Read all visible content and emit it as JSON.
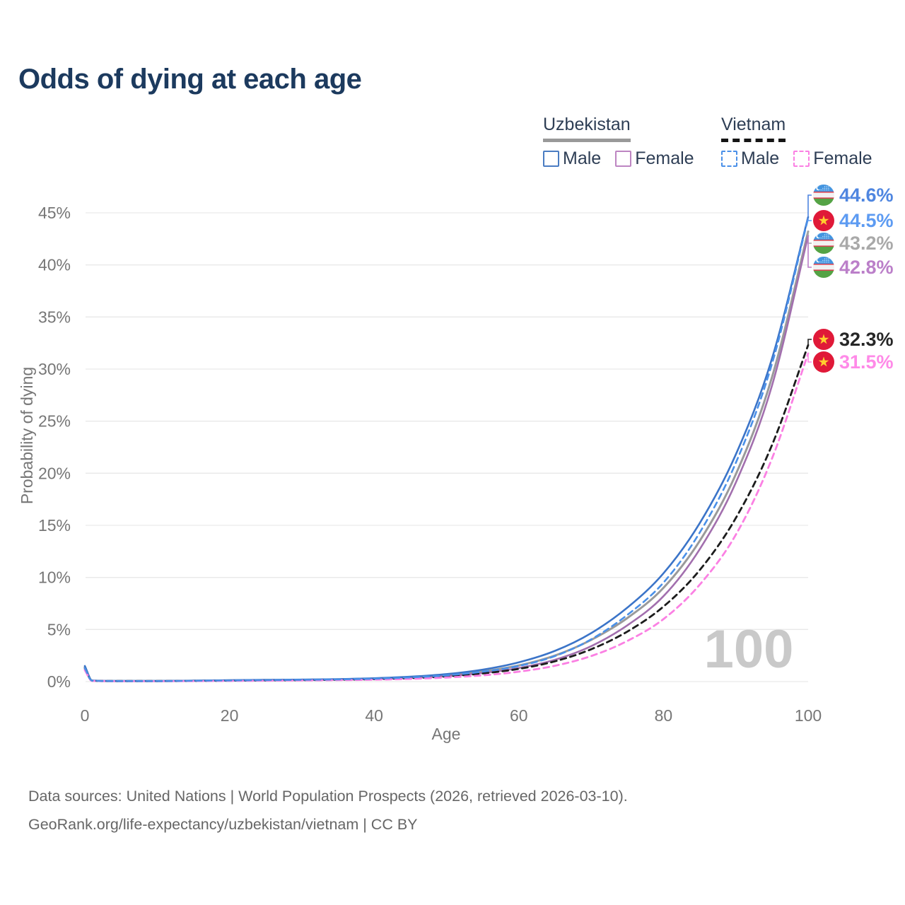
{
  "title": "Odds of dying at each age",
  "legend": {
    "groups": [
      {
        "country": "Uzbekistan",
        "line_style": "solid",
        "underline_color": "#999999",
        "items": [
          {
            "label": "Male",
            "color": "#4a7cc2",
            "dashed": false
          },
          {
            "label": "Female",
            "color": "#bd85c2",
            "dashed": false
          }
        ]
      },
      {
        "country": "Vietnam",
        "line_style": "dashed",
        "underline_color": "#151515",
        "items": [
          {
            "label": "Male",
            "color": "#4a90e8",
            "dashed": true
          },
          {
            "label": "Female",
            "color": "#fb80e3",
            "dashed": true
          }
        ]
      }
    ]
  },
  "chart_data": {
    "type": "line",
    "title": "Odds of dying at each age",
    "xlabel": "Age",
    "ylabel": "Probability of dying",
    "xlim": [
      0,
      100
    ],
    "ylim": [
      0,
      46.5
    ],
    "x_ticks": [
      0,
      20,
      40,
      60,
      80,
      100
    ],
    "y_tick_values": [
      0,
      5,
      10,
      15,
      20,
      25,
      30,
      35,
      40,
      45
    ],
    "y_tick_labels": [
      "0%",
      "5%",
      "10%",
      "15%",
      "20%",
      "25%",
      "30%",
      "35%",
      "40%",
      "45%"
    ],
    "grid": "horizontal",
    "legend_position": "top-right",
    "watermark": "100",
    "ages": [
      0,
      1,
      5,
      10,
      15,
      20,
      25,
      30,
      35,
      40,
      45,
      50,
      55,
      60,
      65,
      70,
      75,
      80,
      85,
      90,
      95,
      100
    ],
    "series": [
      {
        "name": "Uzbekistan (both sexes)",
        "country": "Uzbekistan",
        "style": "solid",
        "color": "#9a9a9a",
        "width": 3,
        "values": [
          1.4,
          0.09,
          0.05,
          0.05,
          0.08,
          0.11,
          0.14,
          0.17,
          0.21,
          0.28,
          0.41,
          0.62,
          0.98,
          1.55,
          2.5,
          4.0,
          6.1,
          9.0,
          13.5,
          19.9,
          29.2,
          43.2
        ]
      },
      {
        "name": "Uzbekistan Female",
        "country": "Uzbekistan",
        "style": "solid",
        "color": "#a26fae",
        "width": 2.6,
        "values": [
          1.2,
          0.08,
          0.05,
          0.05,
          0.07,
          0.09,
          0.11,
          0.14,
          0.18,
          0.24,
          0.35,
          0.53,
          0.83,
          1.3,
          2.1,
          3.4,
          5.4,
          8.2,
          12.7,
          19.1,
          28.4,
          42.8
        ]
      },
      {
        "name": "Uzbekistan Male",
        "country": "Uzbekistan",
        "style": "solid",
        "color": "#3b74c8",
        "width": 2.6,
        "values": [
          1.5,
          0.1,
          0.06,
          0.06,
          0.09,
          0.13,
          0.16,
          0.19,
          0.24,
          0.32,
          0.47,
          0.72,
          1.15,
          1.85,
          2.95,
          4.65,
          7.1,
          10.4,
          15.2,
          21.8,
          31.0,
          44.6
        ]
      },
      {
        "name": "Vietnam (both sexes)",
        "country": "Vietnam",
        "style": "dashed",
        "color": "#1c1c1c",
        "width": 2.8,
        "values": [
          1.3,
          0.08,
          0.05,
          0.05,
          0.07,
          0.09,
          0.12,
          0.14,
          0.18,
          0.23,
          0.33,
          0.5,
          0.78,
          1.22,
          1.95,
          3.1,
          4.8,
          7.2,
          10.7,
          15.7,
          22.7,
          32.3
        ]
      },
      {
        "name": "Vietnam Female",
        "country": "Vietnam",
        "style": "dashed",
        "color": "#fb80e3",
        "width": 2.8,
        "values": [
          1.1,
          0.07,
          0.04,
          0.04,
          0.05,
          0.07,
          0.09,
          0.11,
          0.14,
          0.18,
          0.26,
          0.39,
          0.6,
          0.95,
          1.52,
          2.45,
          3.9,
          6.0,
          9.3,
          14.1,
          21.4,
          31.5
        ]
      },
      {
        "name": "Vietnam Male",
        "country": "Vietnam",
        "style": "dashed",
        "color": "#4a90e8",
        "width": 2.6,
        "values": [
          1.3,
          0.09,
          0.05,
          0.05,
          0.08,
          0.11,
          0.14,
          0.17,
          0.21,
          0.28,
          0.4,
          0.6,
          0.95,
          1.5,
          2.45,
          4.05,
          6.4,
          9.5,
          14.3,
          21.0,
          30.5,
          44.5
        ]
      }
    ]
  },
  "end_labels": [
    {
      "text": "44.6%",
      "flag": "uzbekistan",
      "color": "#4f86e0",
      "series": "Uzbekistan Male"
    },
    {
      "text": "44.5%",
      "flag": "vietnam",
      "color": "#5d9bf2",
      "series": "Vietnam Male"
    },
    {
      "text": "43.2%",
      "flag": "uzbekistan",
      "color": "#a9a9a9",
      "series": "Uzbekistan (both sexes)"
    },
    {
      "text": "42.8%",
      "flag": "uzbekistan",
      "color": "#bb7fc9",
      "series": "Uzbekistan Female"
    },
    {
      "text": "32.3%",
      "flag": "vietnam",
      "color": "#262626",
      "series": "Vietnam (both sexes)"
    },
    {
      "text": "31.5%",
      "flag": "vietnam",
      "color": "#ff8ae8",
      "series": "Vietnam Female"
    }
  ],
  "footer": {
    "line1": "Data sources: United Nations | World Population Prospects (2026, retrieved 2026-03-10).",
    "line2": "GeoRank.org/life-expectancy/uzbekistan/vietnam | CC BY"
  }
}
